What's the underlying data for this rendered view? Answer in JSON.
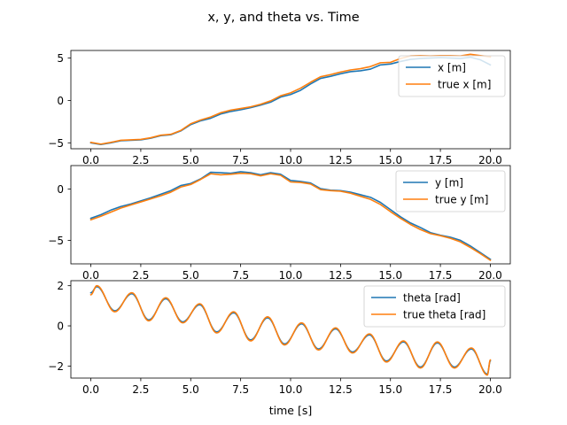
{
  "figure": {
    "title": "x, y, and theta vs. Time",
    "xlabel": "time [s]"
  },
  "chart_data": [
    {
      "type": "line",
      "xlim": [
        -1.0,
        21.0
      ],
      "ylim": [
        -5.7,
        5.9
      ],
      "x_ticks": [
        0.0,
        2.5,
        5.0,
        7.5,
        10.0,
        12.5,
        15.0,
        17.5,
        20.0
      ],
      "x_tick_labels": [
        "0.0",
        "2.5",
        "5.0",
        "7.5",
        "10.0",
        "12.5",
        "15.0",
        "17.5",
        "20.0"
      ],
      "y_ticks": [
        -5,
        0,
        5
      ],
      "y_tick_labels": [
        "−5",
        "0",
        "5"
      ],
      "legend_position": "top-right",
      "series": [
        {
          "name": "x [m]",
          "color": "#1f77b4",
          "points": [
            [
              0,
              -5.0
            ],
            [
              0.5,
              -5.2
            ],
            [
              1,
              -5.0
            ],
            [
              1.5,
              -4.75
            ],
            [
              2,
              -4.7
            ],
            [
              2.5,
              -4.65
            ],
            [
              3,
              -4.45
            ],
            [
              3.5,
              -4.15
            ],
            [
              4,
              -4.05
            ],
            [
              4.5,
              -3.6
            ],
            [
              5,
              -2.85
            ],
            [
              5.5,
              -2.4
            ],
            [
              6,
              -2.1
            ],
            [
              6.5,
              -1.6
            ],
            [
              7,
              -1.3
            ],
            [
              7.5,
              -1.1
            ],
            [
              8,
              -0.85
            ],
            [
              8.5,
              -0.55
            ],
            [
              9,
              -0.2
            ],
            [
              9.5,
              0.4
            ],
            [
              10,
              0.7
            ],
            [
              10.5,
              1.2
            ],
            [
              11,
              1.95
            ],
            [
              11.5,
              2.6
            ],
            [
              12,
              2.85
            ],
            [
              12.5,
              3.15
            ],
            [
              13,
              3.4
            ],
            [
              13.5,
              3.5
            ],
            [
              14,
              3.7
            ],
            [
              14.5,
              4.2
            ],
            [
              15,
              4.3
            ],
            [
              15.5,
              4.6
            ],
            [
              16,
              4.85
            ],
            [
              16.5,
              4.95
            ],
            [
              17,
              5.0
            ],
            [
              17.5,
              5.05
            ],
            [
              18,
              5.0
            ],
            [
              18.5,
              4.95
            ],
            [
              19,
              5.1
            ],
            [
              19.5,
              4.8
            ],
            [
              20,
              4.2
            ]
          ]
        },
        {
          "name": "true x [m]",
          "color": "#ff7f0e",
          "points": [
            [
              0,
              -4.95
            ],
            [
              0.5,
              -5.15
            ],
            [
              1,
              -4.95
            ],
            [
              1.5,
              -4.7
            ],
            [
              2,
              -4.65
            ],
            [
              2.5,
              -4.6
            ],
            [
              3,
              -4.4
            ],
            [
              3.5,
              -4.1
            ],
            [
              4,
              -4.0
            ],
            [
              4.5,
              -3.55
            ],
            [
              5,
              -2.75
            ],
            [
              5.5,
              -2.3
            ],
            [
              6,
              -1.95
            ],
            [
              6.5,
              -1.45
            ],
            [
              7,
              -1.15
            ],
            [
              7.5,
              -0.95
            ],
            [
              8,
              -0.75
            ],
            [
              8.5,
              -0.45
            ],
            [
              9,
              -0.05
            ],
            [
              9.5,
              0.55
            ],
            [
              10,
              0.9
            ],
            [
              10.5,
              1.45
            ],
            [
              11,
              2.15
            ],
            [
              11.5,
              2.8
            ],
            [
              12,
              3.05
            ],
            [
              12.5,
              3.35
            ],
            [
              13,
              3.6
            ],
            [
              13.5,
              3.75
            ],
            [
              14,
              4.0
            ],
            [
              14.5,
              4.45
            ],
            [
              15,
              4.5
            ],
            [
              15.5,
              4.95
            ],
            [
              16,
              5.25
            ],
            [
              16.5,
              5.3
            ],
            [
              17,
              5.25
            ],
            [
              17.5,
              5.3
            ],
            [
              18,
              5.3
            ],
            [
              18.5,
              5.25
            ],
            [
              19,
              5.45
            ],
            [
              19.5,
              5.3
            ],
            [
              20,
              5.15
            ]
          ]
        }
      ]
    },
    {
      "type": "line",
      "xlim": [
        -1.0,
        21.0
      ],
      "ylim": [
        -7.3,
        2.3
      ],
      "x_ticks": [
        0.0,
        2.5,
        5.0,
        7.5,
        10.0,
        12.5,
        15.0,
        17.5,
        20.0
      ],
      "x_tick_labels": [
        "0.0",
        "2.5",
        "5.0",
        "7.5",
        "10.0",
        "12.5",
        "15.0",
        "17.5",
        "20.0"
      ],
      "y_ticks": [
        -5,
        0
      ],
      "y_tick_labels": [
        "−5",
        "0"
      ],
      "legend_position": "top-right",
      "series": [
        {
          "name": "y [m]",
          "color": "#1f77b4",
          "points": [
            [
              0,
              -2.85
            ],
            [
              0.5,
              -2.5
            ],
            [
              1,
              -2.05
            ],
            [
              1.5,
              -1.7
            ],
            [
              2,
              -1.45
            ],
            [
              2.5,
              -1.15
            ],
            [
              3,
              -0.85
            ],
            [
              3.5,
              -0.5
            ],
            [
              4,
              -0.15
            ],
            [
              4.5,
              0.35
            ],
            [
              5,
              0.55
            ],
            [
              5.5,
              1.0
            ],
            [
              6,
              1.65
            ],
            [
              6.5,
              1.6
            ],
            [
              7,
              1.55
            ],
            [
              7.5,
              1.7
            ],
            [
              8,
              1.6
            ],
            [
              8.5,
              1.4
            ],
            [
              9,
              1.6
            ],
            [
              9.5,
              1.45
            ],
            [
              10,
              0.85
            ],
            [
              10.5,
              0.75
            ],
            [
              11,
              0.6
            ],
            [
              11.5,
              0.05
            ],
            [
              12,
              -0.1
            ],
            [
              12.5,
              -0.15
            ],
            [
              13,
              -0.3
            ],
            [
              13.5,
              -0.55
            ],
            [
              14,
              -0.8
            ],
            [
              14.5,
              -1.3
            ],
            [
              15,
              -2.0
            ],
            [
              15.5,
              -2.7
            ],
            [
              16,
              -3.3
            ],
            [
              16.5,
              -3.75
            ],
            [
              17,
              -4.25
            ],
            [
              17.5,
              -4.5
            ],
            [
              18,
              -4.7
            ],
            [
              18.5,
              -5.0
            ],
            [
              19,
              -5.55
            ],
            [
              19.5,
              -6.2
            ],
            [
              20,
              -6.85
            ]
          ]
        },
        {
          "name": "true y [m]",
          "color": "#ff7f0e",
          "points": [
            [
              0,
              -3.0
            ],
            [
              0.5,
              -2.65
            ],
            [
              1,
              -2.25
            ],
            [
              1.5,
              -1.85
            ],
            [
              2,
              -1.55
            ],
            [
              2.5,
              -1.25
            ],
            [
              3,
              -0.95
            ],
            [
              3.5,
              -0.65
            ],
            [
              4,
              -0.3
            ],
            [
              4.5,
              0.2
            ],
            [
              5,
              0.45
            ],
            [
              5.5,
              0.95
            ],
            [
              6,
              1.5
            ],
            [
              6.5,
              1.4
            ],
            [
              7,
              1.45
            ],
            [
              7.5,
              1.55
            ],
            [
              8,
              1.5
            ],
            [
              8.5,
              1.3
            ],
            [
              9,
              1.5
            ],
            [
              9.5,
              1.35
            ],
            [
              10,
              0.7
            ],
            [
              10.5,
              0.65
            ],
            [
              11,
              0.5
            ],
            [
              11.5,
              -0.05
            ],
            [
              12,
              -0.15
            ],
            [
              12.5,
              -0.2
            ],
            [
              13,
              -0.4
            ],
            [
              13.5,
              -0.7
            ],
            [
              14,
              -1.0
            ],
            [
              14.5,
              -1.5
            ],
            [
              15,
              -2.2
            ],
            [
              15.5,
              -2.85
            ],
            [
              16,
              -3.45
            ],
            [
              16.5,
              -3.95
            ],
            [
              17,
              -4.35
            ],
            [
              17.5,
              -4.55
            ],
            [
              18,
              -4.8
            ],
            [
              18.5,
              -5.15
            ],
            [
              19,
              -5.7
            ],
            [
              19.5,
              -6.3
            ],
            [
              20,
              -6.95
            ]
          ]
        }
      ]
    },
    {
      "type": "line",
      "xlim": [
        -1.0,
        21.0
      ],
      "ylim": [
        -2.6,
        2.25
      ],
      "x_ticks": [
        0.0,
        2.5,
        5.0,
        7.5,
        10.0,
        12.5,
        15.0,
        17.5,
        20.0
      ],
      "x_tick_labels": [
        "0.0",
        "2.5",
        "5.0",
        "7.5",
        "10.0",
        "12.5",
        "15.0",
        "17.5",
        "20.0"
      ],
      "y_ticks": [
        -2,
        0,
        2
      ],
      "y_tick_labels": [
        "−2",
        "0",
        "2"
      ],
      "legend_position": "top-right",
      "oscillation": {
        "period_s": 1.7,
        "phase_s": 0.35
      },
      "series": [
        {
          "name": "theta [rad]",
          "color": "#1f77b4",
          "peaks": [
            [
              0.3,
              1.95
            ],
            [
              2.05,
              1.6
            ],
            [
              3.75,
              1.35
            ],
            [
              5.45,
              1.05
            ],
            [
              7.15,
              0.65
            ],
            [
              8.85,
              0.4
            ],
            [
              10.55,
              0.1
            ],
            [
              12.25,
              -0.15
            ],
            [
              13.95,
              -0.45
            ],
            [
              15.65,
              -0.8
            ],
            [
              17.35,
              -0.85
            ],
            [
              19.05,
              -1.15
            ],
            [
              20.0,
              -1.75
            ]
          ],
          "troughs": [
            [
              0.0,
              1.65
            ],
            [
              1.2,
              0.75
            ],
            [
              2.9,
              0.3
            ],
            [
              4.6,
              0.2
            ],
            [
              6.3,
              -0.3
            ],
            [
              8.0,
              -0.7
            ],
            [
              9.7,
              -0.9
            ],
            [
              11.4,
              -1.15
            ],
            [
              13.1,
              -1.3
            ],
            [
              14.8,
              -1.75
            ],
            [
              16.5,
              -2.05
            ],
            [
              18.2,
              -2.05
            ],
            [
              19.85,
              -2.4
            ]
          ]
        },
        {
          "name": "true theta [rad]",
          "color": "#ff7f0e",
          "peaks": [
            [
              0.3,
              2.0
            ],
            [
              2.05,
              1.65
            ],
            [
              3.75,
              1.4
            ],
            [
              5.45,
              1.1
            ],
            [
              7.15,
              0.7
            ],
            [
              8.85,
              0.45
            ],
            [
              10.55,
              0.15
            ],
            [
              12.25,
              -0.1
            ],
            [
              13.95,
              -0.4
            ],
            [
              15.65,
              -0.75
            ],
            [
              17.35,
              -0.8
            ],
            [
              19.05,
              -1.1
            ],
            [
              20.0,
              -1.7
            ]
          ],
          "troughs": [
            [
              0.0,
              1.55
            ],
            [
              1.2,
              0.7
            ],
            [
              2.9,
              0.25
            ],
            [
              4.6,
              0.15
            ],
            [
              6.3,
              -0.35
            ],
            [
              8.0,
              -0.75
            ],
            [
              9.7,
              -0.95
            ],
            [
              11.4,
              -1.2
            ],
            [
              13.1,
              -1.35
            ],
            [
              14.8,
              -1.8
            ],
            [
              16.5,
              -2.1
            ],
            [
              18.2,
              -2.1
            ],
            [
              19.85,
              -2.45
            ]
          ]
        }
      ]
    }
  ]
}
